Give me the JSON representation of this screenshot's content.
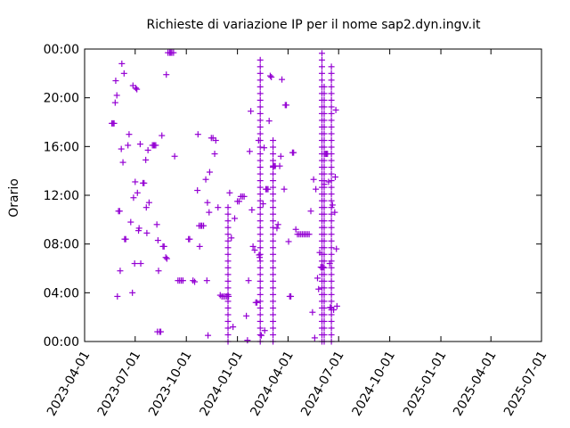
{
  "chart_data": {
    "type": "scatter",
    "title": "Richieste di variazione IP per il nome sap2.dyn.ingv.it",
    "xlabel": "",
    "ylabel": "Orario",
    "x_ticks": [
      "2023-04-01",
      "2023-07-01",
      "2023-10-01",
      "2024-01-01",
      "2024-04-01",
      "2024-07-01",
      "2024-10-01",
      "2025-01-01",
      "2025-04-01",
      "2025-07-01"
    ],
    "y_ticks": [
      "00:00",
      "04:00",
      "08:00",
      "12:00",
      "16:00",
      "20:00",
      "00:00"
    ],
    "xlim": [
      "2023-04-01",
      "2025-07-01"
    ],
    "ylim_hours": [
      0,
      24
    ],
    "grid": false,
    "legend": "none",
    "marker": "plus",
    "color": "#9400d3",
    "points": [
      [
        "2023-05-20",
        17.9
      ],
      [
        "2023-05-22",
        17.9
      ],
      [
        "2023-05-24",
        17.9
      ],
      [
        "2023-05-26",
        19.6
      ],
      [
        "2023-05-27",
        21.4
      ],
      [
        "2023-05-29",
        20.2
      ],
      [
        "2023-05-30",
        3.7
      ],
      [
        "2023-06-01",
        10.7
      ],
      [
        "2023-06-03",
        10.7
      ],
      [
        "2023-06-04",
        5.8
      ],
      [
        "2023-06-06",
        15.8
      ],
      [
        "2023-06-07",
        22.8
      ],
      [
        "2023-06-09",
        14.7
      ],
      [
        "2023-06-11",
        22.0
      ],
      [
        "2023-06-12",
        8.4
      ],
      [
        "2023-06-14",
        8.4
      ],
      [
        "2023-06-18",
        16.1
      ],
      [
        "2023-06-20",
        17.0
      ],
      [
        "2023-06-23",
        9.8
      ],
      [
        "2023-06-26",
        4.0
      ],
      [
        "2023-06-27",
        21.0
      ],
      [
        "2023-06-28",
        11.8
      ],
      [
        "2023-06-30",
        6.4
      ],
      [
        "2023-07-01",
        13.1
      ],
      [
        "2023-07-02",
        20.8
      ],
      [
        "2023-07-04",
        20.7
      ],
      [
        "2023-07-05",
        12.2
      ],
      [
        "2023-07-07",
        9.1
      ],
      [
        "2023-07-08",
        9.3
      ],
      [
        "2023-07-10",
        16.2
      ],
      [
        "2023-07-11",
        6.4
      ],
      [
        "2023-07-15",
        13.0
      ],
      [
        "2023-07-17",
        13.0
      ],
      [
        "2023-07-20",
        14.9
      ],
      [
        "2023-07-21",
        11.0
      ],
      [
        "2023-07-22",
        8.9
      ],
      [
        "2023-07-24",
        15.7
      ],
      [
        "2023-07-26",
        11.4
      ],
      [
        "2023-08-01",
        16.1
      ],
      [
        "2023-08-03",
        16.1
      ],
      [
        "2023-08-05",
        16.1
      ],
      [
        "2023-08-07",
        16.1
      ],
      [
        "2023-08-09",
        9.6
      ],
      [
        "2023-08-10",
        0.8
      ],
      [
        "2023-08-11",
        8.3
      ],
      [
        "2023-08-12",
        5.8
      ],
      [
        "2023-08-14",
        0.8
      ],
      [
        "2023-08-16",
        0.8
      ],
      [
        "2023-08-18",
        16.9
      ],
      [
        "2023-08-20",
        7.8
      ],
      [
        "2023-08-22",
        7.8
      ],
      [
        "2023-08-25",
        6.9
      ],
      [
        "2023-08-26",
        21.9
      ],
      [
        "2023-08-27",
        6.8
      ],
      [
        "2023-08-29",
        23.7
      ],
      [
        "2023-09-01",
        23.7
      ],
      [
        "2023-09-03",
        23.7
      ],
      [
        "2023-09-05",
        23.7
      ],
      [
        "2023-09-08",
        23.7
      ],
      [
        "2023-09-10",
        15.2
      ],
      [
        "2023-09-16",
        5.0
      ],
      [
        "2023-09-19",
        5.0
      ],
      [
        "2023-09-22",
        5.0
      ],
      [
        "2023-09-25",
        5.0
      ],
      [
        "2023-10-05",
        8.4
      ],
      [
        "2023-10-07",
        8.4
      ],
      [
        "2023-10-13",
        5.0
      ],
      [
        "2023-10-16",
        4.9
      ],
      [
        "2023-10-21",
        12.4
      ],
      [
        "2023-10-22",
        17.0
      ],
      [
        "2023-10-24",
        9.5
      ],
      [
        "2023-10-25",
        7.8
      ],
      [
        "2023-10-27",
        9.5
      ],
      [
        "2023-10-29",
        9.5
      ],
      [
        "2023-11-01",
        9.5
      ],
      [
        "2023-11-05",
        13.3
      ],
      [
        "2023-11-07",
        5.0
      ],
      [
        "2023-11-08",
        11.4
      ],
      [
        "2023-11-09",
        0.5
      ],
      [
        "2023-11-11",
        10.6
      ],
      [
        "2023-11-12",
        13.9
      ],
      [
        "2023-11-15",
        16.7
      ],
      [
        "2023-11-18",
        16.7
      ],
      [
        "2023-11-21",
        15.4
      ],
      [
        "2023-11-23",
        16.5
      ],
      [
        "2023-11-27",
        11.0
      ],
      [
        "2023-12-01",
        3.8
      ],
      [
        "2023-12-04",
        3.7
      ],
      [
        "2023-12-07",
        3.7
      ],
      [
        "2023-12-10",
        3.7
      ],
      [
        "2023-12-13",
        3.7
      ],
      [
        "2023-12-16",
        3.7
      ],
      [
        "2023-12-18",
        12.2
      ],
      [
        "2023-12-21",
        8.5
      ],
      [
        "2023-12-24",
        1.2
      ],
      [
        "2023-12-27",
        10.1
      ],
      [
        "2024-01-01",
        11.5
      ],
      [
        "2024-01-04",
        11.5
      ],
      [
        "2024-01-07",
        11.9
      ],
      [
        "2024-01-10",
        11.9
      ],
      [
        "2024-01-13",
        11.9
      ],
      [
        "2024-01-17",
        2.1
      ],
      [
        "2024-01-19",
        0.1
      ],
      [
        "2024-01-21",
        5.0
      ],
      [
        "2024-01-23",
        15.6
      ],
      [
        "2024-01-25",
        18.9
      ],
      [
        "2024-01-27",
        10.8
      ],
      [
        "2024-01-29",
        7.8
      ],
      [
        "2024-02-01",
        7.5
      ],
      [
        "2024-02-03",
        3.2
      ],
      [
        "2024-02-05",
        3.2
      ],
      [
        "2024-02-08",
        16.5
      ],
      [
        "2024-02-09",
        7.1
      ],
      [
        "2024-02-10",
        6.9
      ],
      [
        "2024-02-13",
        0.5
      ],
      [
        "2024-02-16",
        11.3
      ],
      [
        "2024-02-18",
        15.9
      ],
      [
        "2024-02-19",
        0.9
      ],
      [
        "2024-02-21",
        12.5
      ],
      [
        "2024-02-23",
        12.5
      ],
      [
        "2024-02-25",
        12.5
      ],
      [
        "2024-02-27",
        18.1
      ],
      [
        "2024-02-29",
        21.8
      ],
      [
        "2024-03-02",
        21.7
      ],
      [
        "2024-03-05",
        14.4
      ],
      [
        "2024-03-07",
        14.4
      ],
      [
        "2024-03-09",
        14.4
      ],
      [
        "2024-03-12",
        9.3
      ],
      [
        "2024-03-14",
        9.6
      ],
      [
        "2024-03-17",
        14.4
      ],
      [
        "2024-03-19",
        15.2
      ],
      [
        "2024-03-21",
        21.5
      ],
      [
        "2024-03-25",
        12.5
      ],
      [
        "2024-03-27",
        19.4
      ],
      [
        "2024-03-29",
        19.4
      ],
      [
        "2024-04-02",
        8.2
      ],
      [
        "2024-04-04",
        3.7
      ],
      [
        "2024-04-06",
        3.7
      ],
      [
        "2024-04-09",
        15.5
      ],
      [
        "2024-04-11",
        15.5
      ],
      [
        "2024-04-15",
        9.2
      ],
      [
        "2024-04-18",
        8.8
      ],
      [
        "2024-04-21",
        8.8
      ],
      [
        "2024-04-24",
        8.8
      ],
      [
        "2024-04-27",
        8.8
      ],
      [
        "2024-04-30",
        8.8
      ],
      [
        "2024-05-03",
        8.8
      ],
      [
        "2024-05-06",
        8.8
      ],
      [
        "2024-05-09",
        8.8
      ],
      [
        "2024-05-12",
        10.7
      ],
      [
        "2024-05-15",
        2.4
      ],
      [
        "2024-05-17",
        13.3
      ],
      [
        "2024-05-19",
        0.3
      ],
      [
        "2024-05-21",
        12.5
      ],
      [
        "2024-05-24",
        5.2
      ],
      [
        "2024-05-26",
        4.3
      ],
      [
        "2024-05-28",
        7.3
      ],
      [
        "2024-05-30",
        6.1
      ],
      [
        "2024-06-01",
        6.1
      ],
      [
        "2024-06-03",
        6.1
      ],
      [
        "2024-06-05",
        12.9
      ],
      [
        "2024-06-07",
        15.4
      ],
      [
        "2024-06-09",
        15.4
      ],
      [
        "2024-06-11",
        15.4
      ],
      [
        "2024-06-13",
        13.1
      ],
      [
        "2024-06-15",
        6.4
      ],
      [
        "2024-06-16",
        2.8
      ],
      [
        "2024-06-18",
        2.6
      ],
      [
        "2024-06-20",
        11.2
      ],
      [
        "2024-06-22",
        2.6
      ],
      [
        "2024-06-24",
        10.6
      ],
      [
        "2024-06-25",
        13.5
      ],
      [
        "2024-06-26",
        19.0
      ],
      [
        "2024-06-27",
        7.6
      ],
      [
        "2024-06-28",
        2.9
      ]
    ],
    "vertical_streaks": [
      [
        "2023-12-15",
        0.0,
        11.5
      ],
      [
        "2024-02-11",
        0.0,
        23.5
      ],
      [
        "2024-03-05",
        0.0,
        17.0
      ],
      [
        "2024-06-01",
        0.0,
        23.8
      ],
      [
        "2024-06-05",
        0.0,
        21.0
      ],
      [
        "2024-06-18",
        0.0,
        23.0
      ]
    ]
  }
}
